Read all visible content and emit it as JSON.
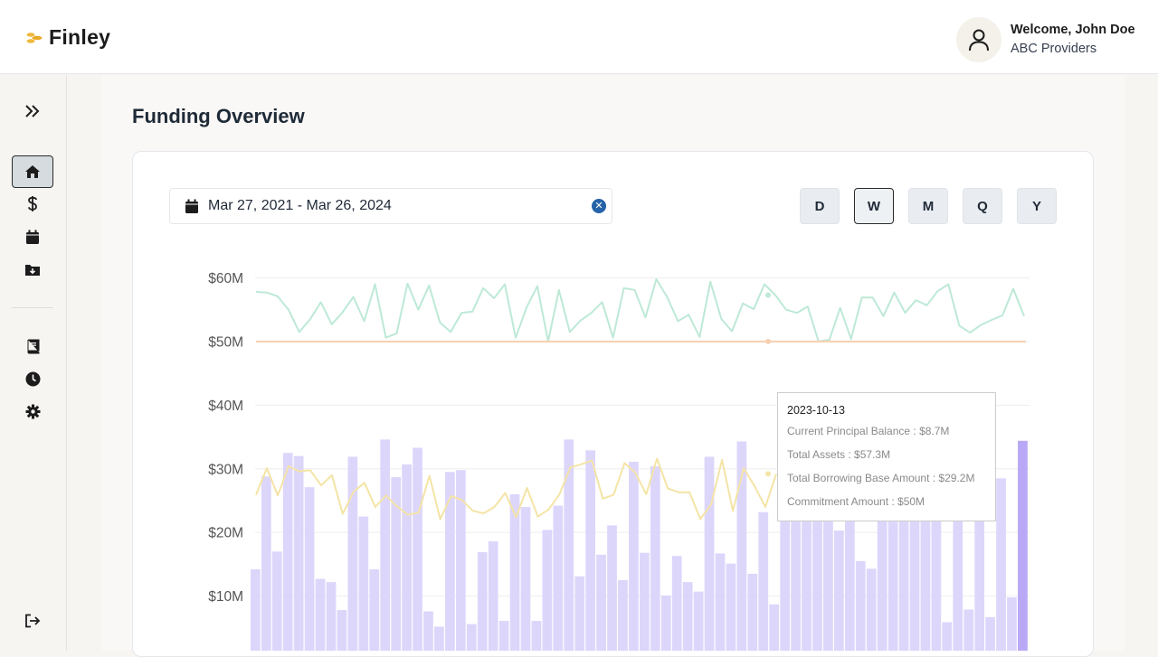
{
  "app": {
    "name": "Finley"
  },
  "user": {
    "welcome": "Welcome, John Doe",
    "org": "ABC Providers"
  },
  "page": {
    "title": "Funding Overview"
  },
  "date_range": {
    "value": "Mar 27, 2021 - Mar 26, 2024"
  },
  "periods": [
    {
      "label": "D",
      "active": false
    },
    {
      "label": "W",
      "active": true
    },
    {
      "label": "M",
      "active": false
    },
    {
      "label": "Q",
      "active": false
    },
    {
      "label": "Y",
      "active": false
    }
  ],
  "sidebar": [
    {
      "icon": "expand-icon"
    },
    {
      "icon": "home-icon",
      "active": true
    },
    {
      "icon": "dollar-icon"
    },
    {
      "icon": "calendar-icon"
    },
    {
      "icon": "folder-download-icon"
    },
    {
      "icon": "book-icon"
    },
    {
      "icon": "clock-icon"
    },
    {
      "icon": "gear-icon"
    },
    {
      "icon": "logout-icon"
    }
  ],
  "tooltip": {
    "date": "2023-10-13",
    "rows": [
      "Current Principal Balance : $8.7M",
      "Total Assets : $57.3M",
      "Total Borrowing Base Amount : $29.2M",
      "Commitment Amount : $50M"
    ]
  },
  "colors": {
    "bars": "#ddd6fb",
    "bar_highlight": "#b9a8f5",
    "assets_line": "#bde9d6",
    "commitment_line": "#f7cfb1",
    "borrowing_line": "#f4e4a6"
  },
  "chart_data": {
    "type": "bar+line",
    "y_ticks": [
      "$10M",
      "$20M",
      "$30M",
      "$40M",
      "$50M",
      "$60M"
    ],
    "ylim": [
      0,
      60
    ],
    "grid": true,
    "series": [
      {
        "type": "bar",
        "values": [
          14.2,
          28.8,
          17.0,
          32.5,
          32.0,
          27.1,
          12.7,
          12.2,
          7.8,
          31.9,
          22.5,
          14.2,
          34.6,
          28.7,
          30.7,
          33.3,
          7.6,
          5.2,
          29.5,
          29.8,
          5.6,
          16.9,
          18.6,
          6.1,
          26.0,
          24.0,
          6.1,
          20.4,
          24.2,
          34.6,
          13.1,
          32.9,
          16.5,
          21.1,
          12.5,
          31.1,
          16.8,
          30.4,
          10.1,
          16.3,
          12.2,
          10.7,
          31.9,
          16.7,
          15.1,
          34.3,
          13.5,
          23.2,
          8.7,
          22.5,
          22.9,
          22.3,
          23.2,
          24.4,
          20.3,
          22.8,
          15.5,
          14.3,
          26.8,
          23.5,
          22.3,
          22.9,
          25.3,
          23.4,
          5.9,
          23.1,
          7.9,
          26.2,
          6.7,
          28.5,
          9.8,
          34.4
        ]
      },
      {
        "type": "line",
        "values": [
          57.8,
          57.7,
          57.1,
          55.0,
          51.5,
          53.5,
          56.2,
          52.7,
          54.6,
          57.0,
          53.2,
          59.0,
          50.6,
          51.3,
          59.1,
          55.0,
          58.8,
          53.0,
          51.5,
          54.5,
          54.7,
          58.4,
          56.8,
          59.0,
          50.6,
          55.3,
          58.7,
          50.0,
          58.1,
          51.5,
          53.3,
          54.5,
          56.2,
          50.6,
          58.4,
          58.1,
          53.8,
          59.8,
          57.0,
          53.2,
          54.2,
          50.7,
          59.4,
          53.6,
          51.6,
          56.0,
          55.1,
          59.0,
          57.3,
          55.0,
          54.5,
          55.5,
          50.0,
          50.3,
          55.3,
          50.4,
          56.9,
          56.9,
          54.0,
          57.7,
          54.5,
          56.5,
          55.7,
          57.9,
          59.0,
          52.5,
          51.4,
          52.6,
          53.4,
          54.1,
          58.3,
          54.0
        ]
      },
      {
        "type": "line",
        "values": [
          50,
          50,
          50,
          50,
          50,
          50,
          50,
          50,
          50,
          50,
          50,
          50,
          50,
          50,
          50,
          50,
          50,
          50,
          50,
          50,
          50,
          50,
          50,
          50,
          50,
          50,
          50,
          50,
          50,
          50,
          50,
          50,
          50,
          50,
          50,
          50,
          50,
          50,
          50,
          50,
          50,
          50,
          50,
          50,
          50,
          50,
          50,
          50,
          50,
          50,
          50,
          50,
          50,
          50,
          50,
          50,
          50,
          50,
          50,
          50,
          50,
          50,
          50,
          50,
          50,
          50,
          50,
          50,
          50,
          50,
          50,
          50
        ]
      },
      {
        "type": "line",
        "values": [
          25.9,
          30.1,
          25.8,
          30.4,
          29.6,
          29.8,
          27.4,
          29.0,
          22.9,
          26.4,
          27.8,
          24.0,
          25.8,
          24.1,
          22.8,
          23.1,
          28.9,
          22.1,
          25.7,
          25.1,
          23.4,
          23.0,
          24.0,
          26.2,
          22.4,
          27.0,
          22.5,
          23.6,
          26.0,
          30.2,
          30.7,
          31.3,
          25.3,
          25.9,
          30.9,
          29.4,
          26.0,
          31.6,
          26.9,
          26.3,
          26.3,
          22.1,
          24.4,
          31.4,
          23.4,
          30.1,
          27.3,
          24.0,
          29.2
        ]
      }
    ]
  }
}
